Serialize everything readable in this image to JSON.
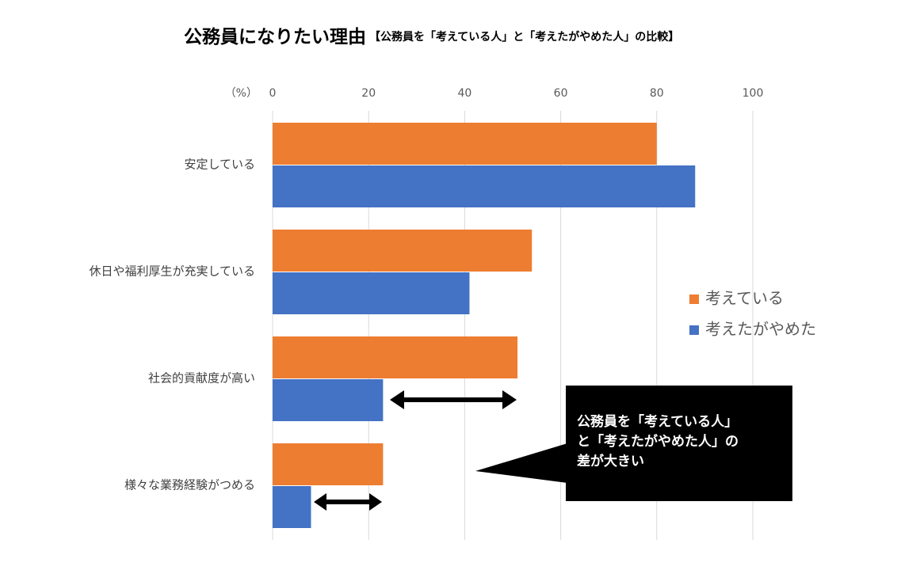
{
  "chart_data": {
    "type": "hbar",
    "title": "公務員になりたい理由",
    "subtitle": "【公務員を「考えている人」と「考えたがやめた人」の比較】",
    "x_axis_label": "（%）",
    "categories": [
      "安定している",
      "休日や福利厚生が充実している",
      "社会的貢献度が高い",
      "様々な業務経験がつめる"
    ],
    "series": [
      {
        "name": "考えている",
        "color": "#ed7d31",
        "values": [
          80,
          54,
          51,
          23
        ]
      },
      {
        "name": "考えたがやめた",
        "color": "#4472c4",
        "values": [
          88,
          41,
          23,
          8
        ]
      }
    ],
    "xlim": [
      0,
      100
    ],
    "xticks": [
      0,
      20,
      40,
      60,
      80,
      100
    ],
    "grid": true,
    "legend": "right",
    "annotation": [
      "公務員を「考えている人」",
      "と「考えたがやめた人」の",
      "差が大きい"
    ]
  }
}
